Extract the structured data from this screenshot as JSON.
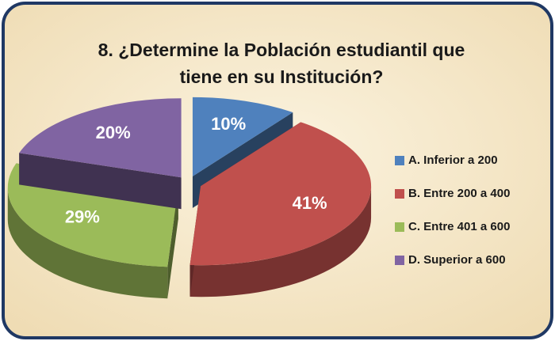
{
  "chart_data": {
    "type": "pie",
    "title": "8. ¿Determine la Población estudiantil que tiene en su Institución?",
    "categories": [
      "A. Inferior a 200",
      "B. Entre 200 a 400",
      "C. Entre 401 a 600",
      "D. Superior a 600"
    ],
    "values": [
      10,
      41,
      29,
      20
    ],
    "value_labels": [
      "10%",
      "41%",
      "29%",
      "20%"
    ],
    "colors": [
      "#4f81bd",
      "#c0504d",
      "#9bbb59",
      "#8064a2"
    ],
    "legend": "right"
  }
}
